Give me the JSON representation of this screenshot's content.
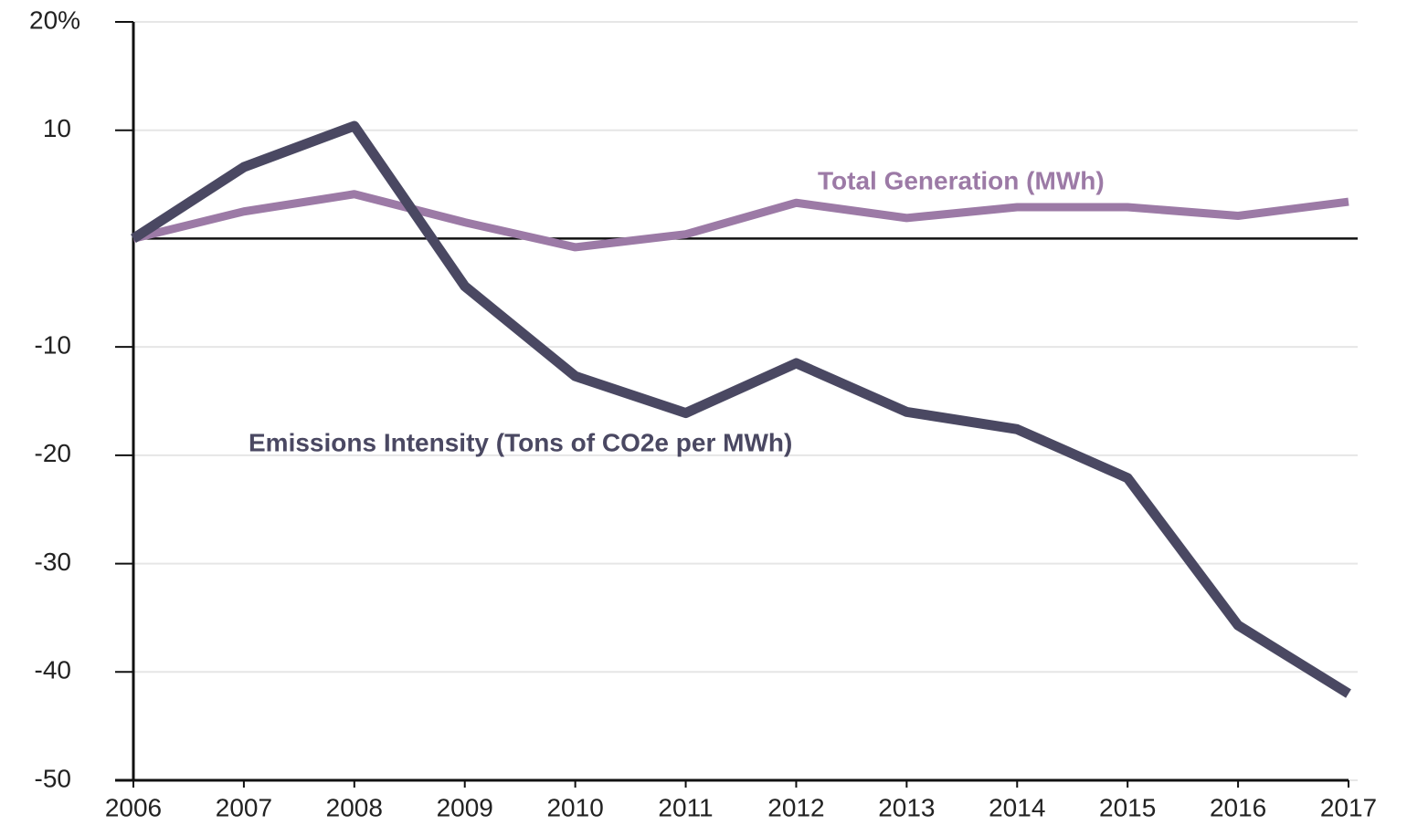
{
  "chart_data": {
    "type": "line",
    "categories": [
      "2006",
      "2007",
      "2008",
      "2009",
      "2010",
      "2011",
      "2012",
      "2013",
      "2014",
      "2015",
      "2016",
      "2017"
    ],
    "series": [
      {
        "name": "Emissions Intensity (Tons of CO2e per MWh)",
        "color": "#4a4862",
        "values": [
          0,
          6.6,
          10.4,
          -4.4,
          -12.7,
          -16.1,
          -11.5,
          -16.0,
          -17.6,
          -22.1,
          -35.7,
          -42.0
        ]
      },
      {
        "name": "Total Generation (MWh)",
        "color": "#9c7aa6",
        "values": [
          0,
          2.5,
          4.1,
          1.5,
          -0.8,
          0.4,
          3.3,
          1.9,
          2.9,
          2.9,
          2.1,
          3.4
        ]
      }
    ],
    "ylim": [
      -50,
      20
    ],
    "yticks": [
      -50,
      -40,
      -30,
      -20,
      -10,
      10,
      {
        "value": 20,
        "label": "20%"
      }
    ],
    "grid": true
  }
}
